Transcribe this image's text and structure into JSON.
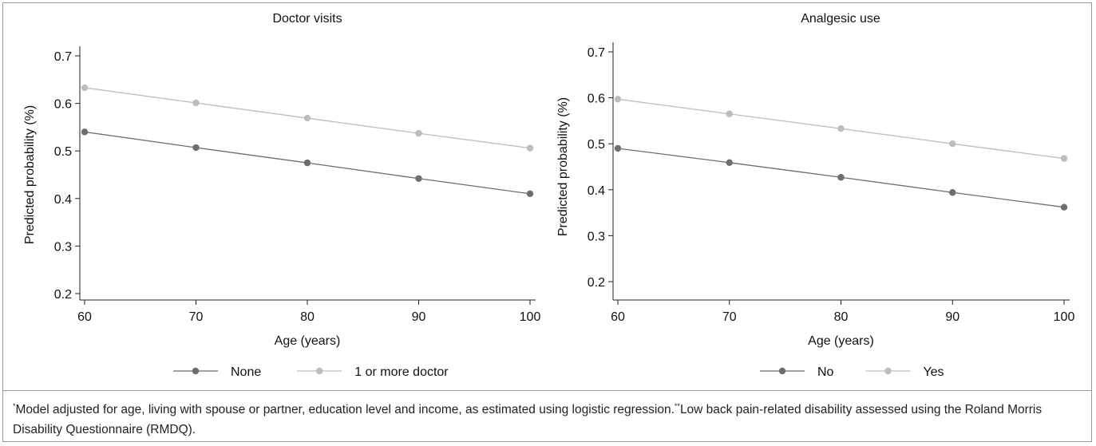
{
  "chart_data": [
    {
      "type": "line",
      "title": "Doctor visits",
      "xlabel": "Age (years)",
      "ylabel": "Predicted probability (%)",
      "x": [
        60,
        70,
        80,
        90,
        100
      ],
      "xticks": [
        60,
        70,
        80,
        90,
        100
      ],
      "yticks": [
        0.2,
        0.3,
        0.4,
        0.5,
        0.6,
        0.7
      ],
      "xlim": [
        60,
        100
      ],
      "ylim": [
        0.2,
        0.7
      ],
      "legend": "bottom",
      "series": [
        {
          "name": "None",
          "color": "#6e6e6e",
          "values": [
            0.54,
            0.507,
            0.475,
            0.442,
            0.41
          ]
        },
        {
          "name": "1 or more doctor",
          "color": "#bdbdbd",
          "values": [
            0.633,
            0.601,
            0.569,
            0.537,
            0.506
          ]
        }
      ]
    },
    {
      "type": "line",
      "title": "Analgesic use",
      "xlabel": "Age (years)",
      "ylabel": "Predicted probability (%)",
      "x": [
        60,
        70,
        80,
        90,
        100
      ],
      "xticks": [
        60,
        70,
        80,
        90,
        100
      ],
      "yticks": [
        0.2,
        0.3,
        0.4,
        0.5,
        0.6,
        0.7
      ],
      "xlim": [
        60,
        100
      ],
      "ylim": [
        0.2,
        0.7
      ],
      "legend": "bottom",
      "series": [
        {
          "name": "No",
          "color": "#6e6e6e",
          "values": [
            0.49,
            0.459,
            0.427,
            0.394,
            0.362
          ]
        },
        {
          "name": "Yes",
          "color": "#bdbdbd",
          "values": [
            0.597,
            0.565,
            0.533,
            0.5,
            0.468
          ]
        }
      ]
    }
  ],
  "footnote": {
    "mark1": "*",
    "text1": "Model adjusted for age, living with spouse or partner, education level and income, as estimated using logistic regression.",
    "mark2": "**",
    "text2": "Low back pain-related disability assessed using the Roland Morris Disability Questionnaire (RMDQ)."
  }
}
